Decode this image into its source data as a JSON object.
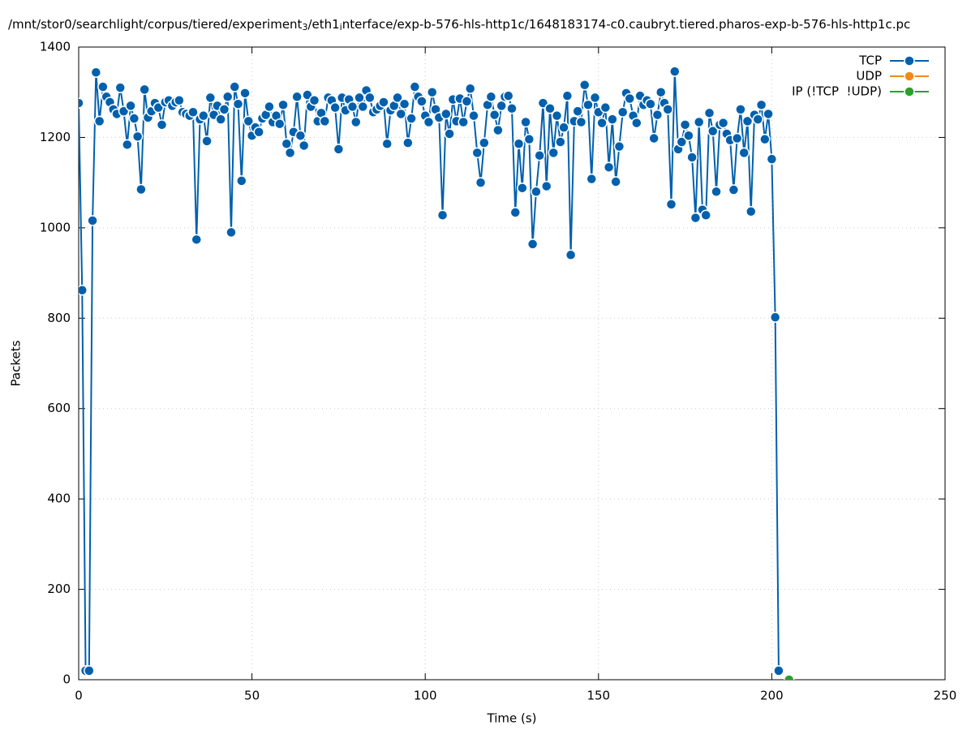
{
  "chart_data": {
    "type": "line",
    "title": [
      "/mnt/stor0/searchlight/corpus/tiered/experiment",
      "3",
      "/eth1",
      "i",
      "nterface/exp-b-576-hls-http1c/1648183174-c0.caubryt.tiered.pharos-exp-b-576-hls-http1c.pc"
    ],
    "xlabel": "Time (s)",
    "ylabel": "Packets",
    "xlim": [
      0,
      250
    ],
    "xticks": [
      0,
      50,
      100,
      150,
      200,
      250
    ],
    "ylim": [
      0,
      1400
    ],
    "yticks": [
      0,
      200,
      400,
      600,
      800,
      1000,
      1200,
      1400
    ],
    "grid": true,
    "legend": "top-right",
    "series": [
      {
        "name": "TCP",
        "color": "#0060ad",
        "x": [
          0,
          1,
          2,
          3,
          4,
          5,
          6,
          7,
          8,
          9,
          10,
          11,
          12,
          13,
          14,
          15,
          16,
          17,
          18,
          19,
          20,
          21,
          22,
          23,
          24,
          25,
          26,
          27,
          28,
          29,
          30,
          31,
          32,
          33,
          34,
          35,
          36,
          37,
          38,
          39,
          40,
          41,
          42,
          43,
          44,
          45,
          46,
          47,
          48,
          49,
          50,
          51,
          52,
          53,
          54,
          55,
          56,
          57,
          58,
          59,
          60,
          61,
          62,
          63,
          64,
          65,
          66,
          67,
          68,
          69,
          70,
          71,
          72,
          73,
          74,
          75,
          76,
          77,
          78,
          79,
          80,
          81,
          82,
          83,
          84,
          85,
          86,
          87,
          88,
          89,
          90,
          91,
          92,
          93,
          94,
          95,
          96,
          97,
          98,
          99,
          100,
          101,
          102,
          103,
          104,
          105,
          106,
          107,
          108,
          109,
          110,
          111,
          112,
          113,
          114,
          115,
          116,
          117,
          118,
          119,
          120,
          121,
          122,
          123,
          124,
          125,
          126,
          127,
          128,
          129,
          130,
          131,
          132,
          133,
          134,
          135,
          136,
          137,
          138,
          139,
          140,
          141,
          142,
          143,
          144,
          145,
          146,
          147,
          148,
          149,
          150,
          151,
          152,
          153,
          154,
          155,
          156,
          157,
          158,
          159,
          160,
          161,
          162,
          163,
          164,
          165,
          166,
          167,
          168,
          169,
          170,
          171,
          172,
          173,
          174,
          175,
          176,
          177,
          178,
          179,
          180,
          181,
          182,
          183,
          184,
          185,
          186,
          187,
          188,
          189,
          190,
          191,
          192,
          193,
          194,
          195,
          196,
          197,
          198,
          199,
          200,
          201,
          202
        ],
        "values": [
          1276,
          862,
          20,
          20,
          1016,
          1344,
          1236,
          1312,
          1290,
          1278,
          1262,
          1252,
          1310,
          1258,
          1184,
          1270,
          1242,
          1202,
          1085,
          1306,
          1244,
          1258,
          1276,
          1266,
          1228,
          1278,
          1282,
          1270,
          1278,
          1282,
          1256,
          1252,
          1248,
          1256,
          974,
          1240,
          1248,
          1192,
          1288,
          1250,
          1270,
          1240,
          1262,
          1290,
          990,
          1312,
          1274,
          1104,
          1298,
          1236,
          1204,
          1222,
          1212,
          1242,
          1250,
          1268,
          1234,
          1248,
          1230,
          1272,
          1186,
          1166,
          1212,
          1290,
          1204,
          1182,
          1294,
          1268,
          1282,
          1236,
          1254,
          1236,
          1288,
          1282,
          1266,
          1174,
          1288,
          1260,
          1284,
          1268,
          1234,
          1288,
          1268,
          1304,
          1288,
          1256,
          1262,
          1270,
          1278,
          1186,
          1260,
          1270,
          1288,
          1252,
          1274,
          1188,
          1242,
          1312,
          1290,
          1280,
          1248,
          1234,
          1300,
          1262,
          1244,
          1028,
          1252,
          1208,
          1284,
          1236,
          1286,
          1234,
          1280,
          1308,
          1248,
          1166,
          1100,
          1188,
          1272,
          1290,
          1250,
          1216,
          1270,
          1290,
          1292,
          1264,
          1034,
          1186,
          1088,
          1234,
          1196,
          964,
          1080,
          1160,
          1276,
          1092,
          1264,
          1166,
          1248,
          1190,
          1222,
          1292,
          940,
          1236,
          1258,
          1234,
          1316,
          1272,
          1108,
          1288,
          1256,
          1232,
          1266,
          1134,
          1240,
          1102,
          1180,
          1256,
          1298,
          1286,
          1248,
          1232,
          1292,
          1272,
          1282,
          1274,
          1198,
          1250,
          1300,
          1276,
          1262,
          1052,
          1346,
          1174,
          1190,
          1228,
          1204,
          1156,
          1022,
          1234,
          1040,
          1028,
          1254,
          1214,
          1080,
          1228,
          1232,
          1208,
          1194,
          1084,
          1198,
          1262,
          1166,
          1236,
          1036,
          1250,
          1240,
          1272,
          1196,
          1252,
          1152,
          802,
          20
        ]
      },
      {
        "name": "UDP",
        "color": "#f28a1a",
        "x": [],
        "values": []
      },
      {
        "name": "IP (!TCP  !UDP)",
        "color": "#2ca02c",
        "x": [
          205
        ],
        "values": [
          0
        ]
      }
    ]
  }
}
